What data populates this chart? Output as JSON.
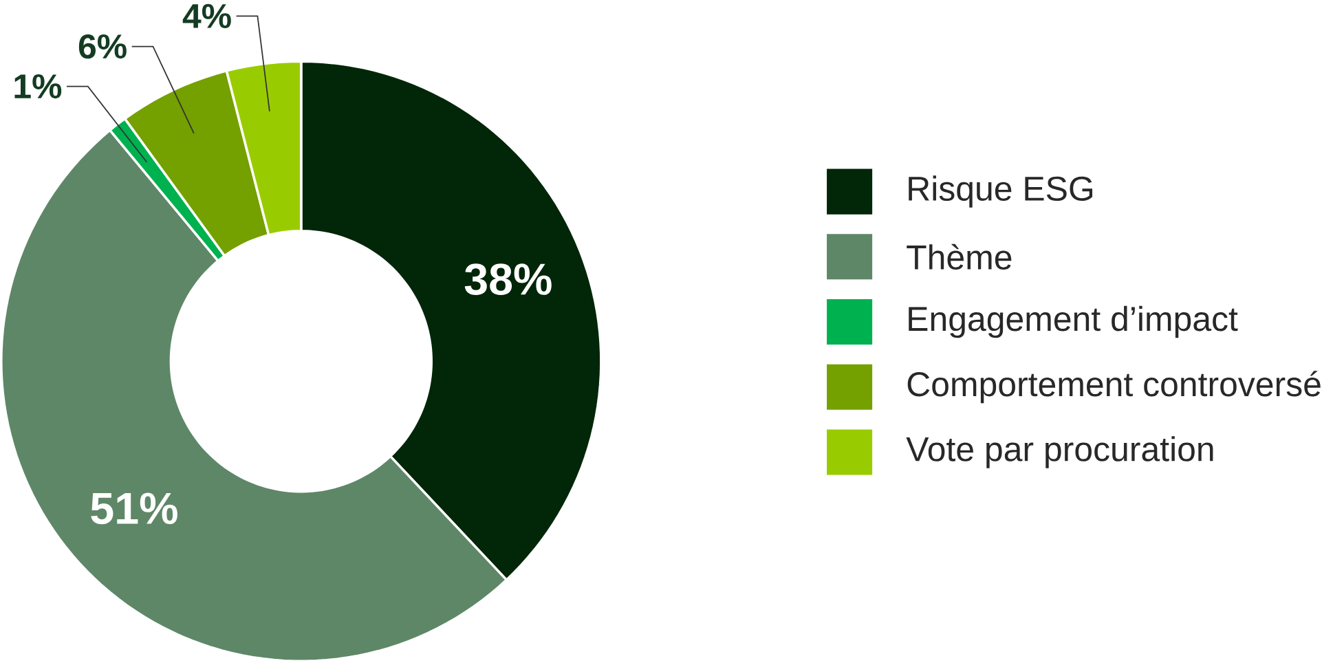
{
  "chart_data": {
    "type": "donut",
    "categories": [
      "Risque ESG",
      "Thème",
      "Engagement d’impact",
      "Comportement controversé",
      "Vote par procuration"
    ],
    "values": [
      38,
      51,
      1,
      6,
      4
    ],
    "colors": [
      "#012608",
      "#5e8767",
      "#00b150",
      "#74a000",
      "#99cc00"
    ],
    "value_labels": [
      "38%",
      "51%",
      "1%",
      "6%",
      "4%"
    ],
    "legend": "right"
  }
}
